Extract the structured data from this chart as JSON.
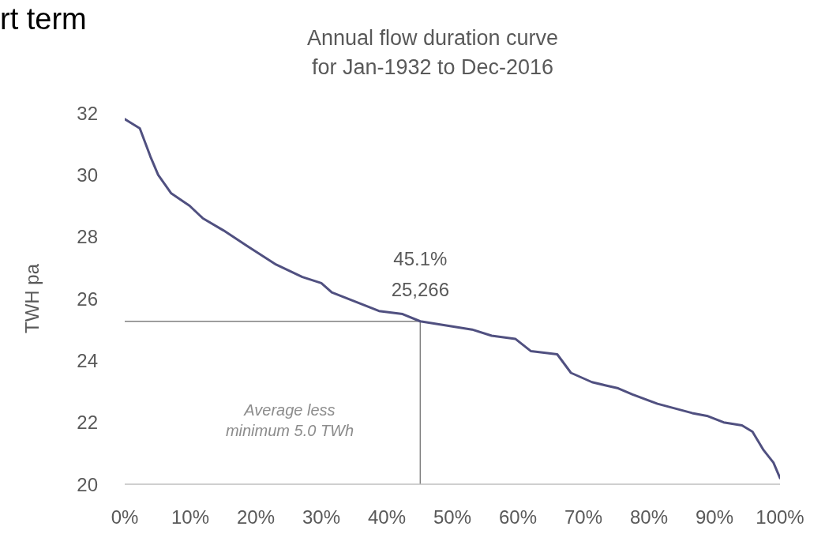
{
  "chart_data": {
    "type": "line",
    "title": "Annual flow duration curve\nfor Jan-1932 to Dec-2016",
    "ylabel": "TWH pa",
    "x": [
      0,
      2.3,
      3.9,
      5.1,
      7.1,
      9.9,
      11.9,
      15.1,
      18.7,
      23.1,
      27.1,
      30,
      31.6,
      35.2,
      38.8,
      42.4,
      45.1,
      50,
      53,
      56,
      59.6,
      62,
      66,
      68.1,
      71.3,
      73.3,
      75.3,
      77.5,
      81.3,
      86.6,
      89,
      91.4,
      94.2,
      95.8,
      97.5,
      99,
      100
    ],
    "series": [
      {
        "color": "#505080",
        "values": [
          31.8,
          31.5,
          30.6,
          30,
          29.4,
          29,
          28.6,
          28.2,
          27.7,
          27.1,
          26.7,
          26.5,
          26.2,
          25.9,
          25.6,
          25.5,
          25.266,
          25.1,
          25,
          24.8,
          24.7,
          24.3,
          24.2,
          23.6,
          23.3,
          23.2,
          23.1,
          22.9,
          22.6,
          22.3,
          22.2,
          22,
          21.9,
          21.7,
          21.1,
          20.7,
          20.2
        ]
      }
    ],
    "xlim": [
      0,
      100
    ],
    "xticks": [
      {
        "value": 0,
        "label": "0%"
      },
      {
        "value": 10,
        "label": "10%"
      },
      {
        "value": 20,
        "label": "20%"
      },
      {
        "value": 30,
        "label": "30%"
      },
      {
        "value": 40,
        "label": "40%"
      },
      {
        "value": 50,
        "label": "50%"
      },
      {
        "value": 60,
        "label": "60%"
      },
      {
        "value": 70,
        "label": "70%"
      },
      {
        "value": 80,
        "label": "80%"
      },
      {
        "value": 90,
        "label": "90%"
      },
      {
        "value": 100,
        "label": "100%"
      }
    ],
    "ylim": [
      20,
      32
    ],
    "yticks": [
      20,
      22,
      24,
      26,
      28,
      30,
      32
    ],
    "marker": "none",
    "line_style": "solid",
    "ref_lines": [
      {
        "axis": "x",
        "value": 45.1,
        "color": "#7f7f7f"
      },
      {
        "axis": "y",
        "value": 25.266,
        "color": "#7f7f7f"
      }
    ],
    "annotations": [
      "rt term",
      {
        "text": "45.1%\n25,266",
        "x": 45.1,
        "y": 25.266
      },
      "Average less\nminimum 5.0 TWh"
    ]
  }
}
